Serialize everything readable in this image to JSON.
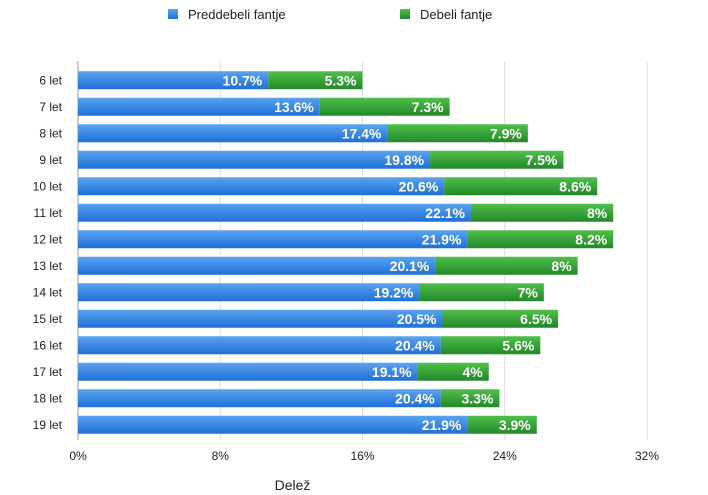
{
  "chart_data": {
    "type": "bar",
    "orientation": "horizontal",
    "stacked": true,
    "categories": [
      "6 let",
      "7 let",
      "8 let",
      "9 let",
      "10 let",
      "11 let",
      "12 let",
      "13 let",
      "14 let",
      "15 let",
      "16 let",
      "17 let",
      "18 let",
      "19 let"
    ],
    "series": [
      {
        "name": "Preddebeli fantje",
        "color": "#2b7de0",
        "values": [
          10.7,
          13.6,
          17.4,
          19.8,
          20.6,
          22.1,
          21.9,
          20.1,
          19.2,
          20.5,
          20.4,
          19.1,
          20.4,
          21.9
        ],
        "labels": [
          "10.7%",
          "13.6%",
          "17.4%",
          "19.8%",
          "20.6%",
          "22.1%",
          "21.9%",
          "20.1%",
          "19.2%",
          "20.5%",
          "20.4%",
          "19.1%",
          "20.4%",
          "21.9%"
        ]
      },
      {
        "name": "Debeli fantje",
        "color": "#2e9a2e",
        "values": [
          5.3,
          7.3,
          7.9,
          7.5,
          8.6,
          8,
          8.2,
          8,
          7,
          6.5,
          5.6,
          4,
          3.3,
          3.9
        ],
        "labels": [
          "5.3%",
          "7.3%",
          "7.9%",
          "7.5%",
          "8.6%",
          "8%",
          "8.2%",
          "8%",
          "7%",
          "6.5%",
          "5.6%",
          "4%",
          "3.3%",
          "3.9%"
        ]
      }
    ],
    "xlim": [
      0,
      32
    ],
    "xticks": [
      0,
      8,
      16,
      24,
      32
    ],
    "xtick_labels": [
      "0%",
      "8%",
      "16%",
      "24%",
      "32%"
    ],
    "xlabel": "Delež",
    "ylabel": "",
    "title": "",
    "legend_position": "top",
    "grid": "vertical"
  }
}
